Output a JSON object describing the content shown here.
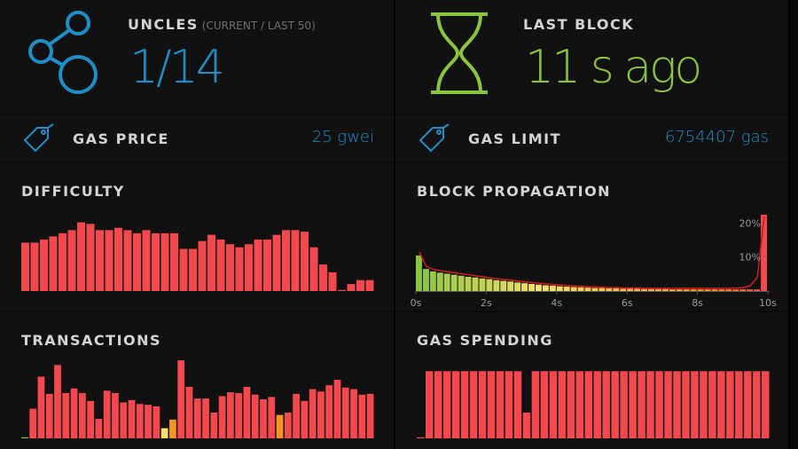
{
  "colors": {
    "blue": "#1e8fc9",
    "green": "#8bc53f",
    "bar_red": "#f2484e",
    "bar_orange": "#f7941d",
    "bar_yellow": "#f5e06b"
  },
  "uncles": {
    "icon": "uncles-icon",
    "label": "UNCLES",
    "sublabel": "(CURRENT / LAST 50)",
    "value": "1/14"
  },
  "last_block": {
    "icon": "hourglass-icon",
    "label": "LAST BLOCK",
    "value": "11 s ago"
  },
  "gas_price": {
    "icon": "tag-icon",
    "label": "GAS PRICE",
    "value": "25 gwei"
  },
  "gas_limit": {
    "icon": "tag-icon",
    "label": "GAS LIMIT",
    "value": "6754407 gas"
  },
  "difficulty": {
    "label": "DIFFICULTY"
  },
  "block_propagation": {
    "label": "BLOCK PROPAGATION"
  },
  "transactions": {
    "label": "TRANSACTIONS"
  },
  "gas_spending": {
    "label": "GAS SPENDING"
  },
  "chart_data": [
    {
      "type": "bar",
      "title": "DIFFICULTY",
      "values": [
        0.62,
        0.62,
        0.66,
        0.7,
        0.74,
        0.78,
        0.88,
        0.86,
        0.78,
        0.78,
        0.81,
        0.78,
        0.74,
        0.78,
        0.74,
        0.74,
        0.74,
        0.54,
        0.54,
        0.64,
        0.72,
        0.66,
        0.6,
        0.56,
        0.6,
        0.66,
        0.66,
        0.72,
        0.78,
        0.78,
        0.76,
        0.56,
        0.34,
        0.24,
        0.0,
        0.09,
        0.14,
        0.14
      ]
    },
    {
      "type": "bar",
      "title": "BLOCK PROPAGATION",
      "xlabel": "s",
      "x_ticks": [
        "0s",
        "2s",
        "4s",
        "6s",
        "8s",
        "10s"
      ],
      "y_ticks": [
        "10%",
        "20%"
      ],
      "xlim": [
        0,
        10
      ],
      "ylim": [
        0,
        23
      ],
      "values": [
        10.5,
        6.5,
        5.8,
        5.4,
        5.1,
        4.8,
        4.5,
        4.2,
        4.0,
        3.7,
        3.5,
        3.2,
        3.0,
        2.8,
        2.5,
        2.3,
        2.1,
        1.9,
        1.7,
        1.6,
        1.4,
        1.3,
        1.2,
        1.1,
        1.0,
        0.9,
        0.9,
        0.8,
        0.8,
        0.7,
        0.7,
        0.7,
        0.6,
        0.6,
        0.6,
        0.6,
        0.5,
        0.5,
        0.5,
        0.5,
        0.5,
        0.5,
        0.5,
        0.5,
        0.5,
        0.5,
        0.5,
        0.5,
        0.5,
        22.5
      ],
      "line_values": [
        11.5,
        7.2,
        6.4,
        6.0,
        5.7,
        5.4,
        5.1,
        4.8,
        4.5,
        4.2,
        3.9,
        3.6,
        3.4,
        3.2,
        2.9,
        2.7,
        2.5,
        2.3,
        2.1,
        1.9,
        1.8,
        1.6,
        1.5,
        1.4,
        1.3,
        1.2,
        1.1,
        1.0,
        1.0,
        0.9,
        0.9,
        0.9,
        0.8,
        0.8,
        0.8,
        0.8,
        0.8,
        0.8,
        0.8,
        0.8,
        0.8,
        0.8,
        0.8,
        0.8,
        0.8,
        0.9,
        1.0,
        1.6,
        4.0,
        22.0
      ]
    },
    {
      "type": "bar",
      "title": "TRANSACTIONS",
      "values": [
        0.01,
        0.38,
        0.79,
        0.57,
        0.94,
        0.58,
        0.64,
        0.58,
        0.48,
        0.25,
        0.61,
        0.58,
        0.46,
        0.49,
        0.44,
        0.43,
        0.41,
        0.13,
        0.24,
        1.0,
        0.66,
        0.51,
        0.51,
        0.33,
        0.54,
        0.59,
        0.58,
        0.66,
        0.56,
        0.5,
        0.53,
        0.3,
        0.33,
        0.57,
        0.48,
        0.63,
        0.6,
        0.68,
        0.75,
        0.65,
        0.63,
        0.56,
        0.57
      ],
      "value_colors": [
        "green",
        "red",
        "red",
        "red",
        "red",
        "red",
        "red",
        "red",
        "red",
        "red",
        "red",
        "red",
        "red",
        "red",
        "red",
        "red",
        "red",
        "yellow",
        "orange",
        "red",
        "red",
        "red",
        "red",
        "red",
        "red",
        "red",
        "red",
        "red",
        "red",
        "red",
        "red",
        "orange",
        "red",
        "red",
        "red",
        "red",
        "red",
        "red",
        "red",
        "red",
        "red",
        "red",
        "red"
      ]
    },
    {
      "type": "bar",
      "title": "GAS SPENDING",
      "values": [
        0.0,
        0.86,
        0.86,
        0.86,
        0.86,
        0.86,
        0.86,
        0.86,
        0.86,
        0.86,
        0.86,
        0.86,
        0.33,
        0.86,
        0.86,
        0.86,
        0.86,
        0.86,
        0.86,
        0.86,
        0.86,
        0.86,
        0.86,
        0.86,
        0.86,
        0.86,
        0.86,
        0.86,
        0.86,
        0.86,
        0.86,
        0.86,
        0.86,
        0.86,
        0.86,
        0.86,
        0.86,
        0.86,
        0.86,
        0.86
      ]
    }
  ]
}
